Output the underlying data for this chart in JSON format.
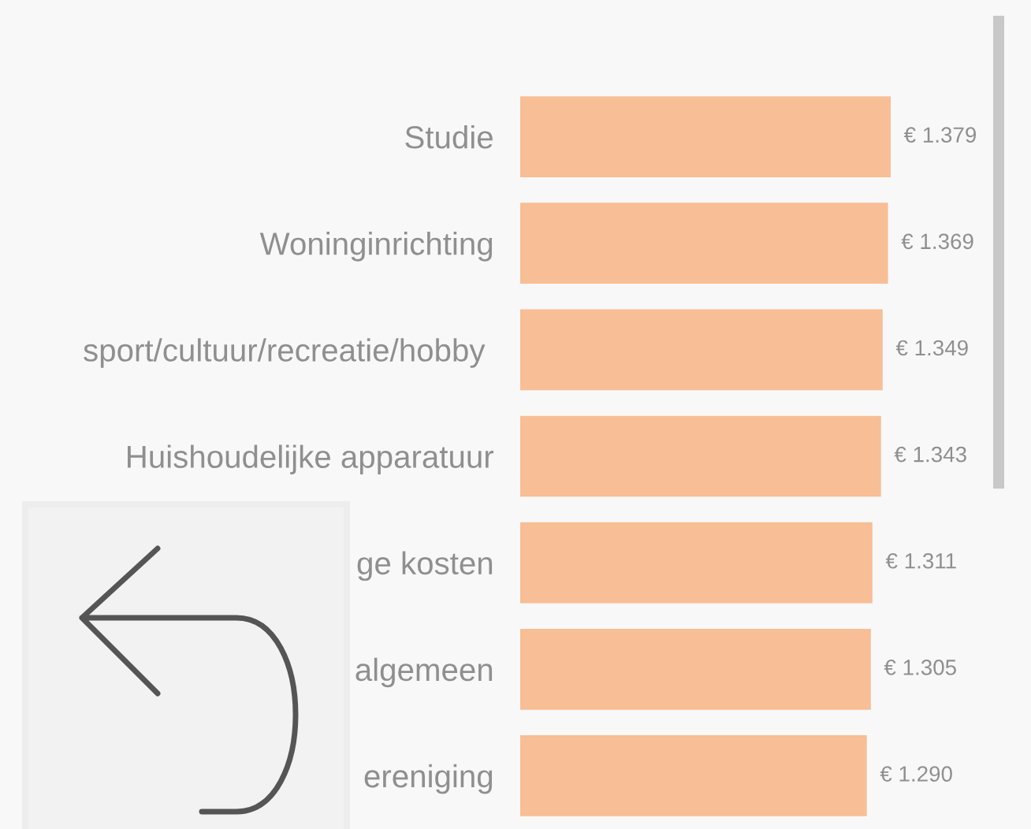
{
  "chart_data": {
    "type": "bar",
    "orientation": "horizontal",
    "categories": [
      "Studie",
      "Woninginrichting",
      "sport/cultuur/recreatie/hobby ",
      "Huishoudelijke apparatuur",
      "ge kosten",
      "algemeen",
      "ereniging"
    ],
    "values": [
      1379,
      1369,
      1349,
      1343,
      1311,
      1305,
      1290
    ],
    "value_labels": [
      "€ 1.379",
      "€ 1.369",
      "€ 1.349",
      "€ 1.343",
      "€ 1.311",
      "€ 1.305",
      "€ 1.290"
    ],
    "color": "#f8be95",
    "grid": false,
    "legend": false
  }
}
